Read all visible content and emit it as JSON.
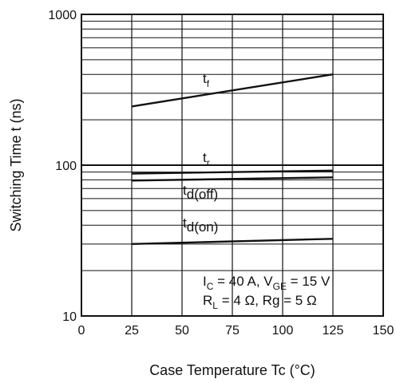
{
  "chart_data": {
    "type": "line",
    "xlabel": "Case Temperature   Tc  (°C)",
    "ylabel": "Switching Time   t  (ns)",
    "xlim": [
      0,
      150
    ],
    "ylim": [
      10,
      1000
    ],
    "y_scale": "log",
    "grid": true,
    "x_ticks": [
      "0",
      "25",
      "50",
      "75",
      "100",
      "125",
      "150"
    ],
    "y_ticks": [
      "10",
      "100",
      "1000"
    ],
    "series": [
      {
        "name": "tf",
        "label_main": "t",
        "label_sub": "f",
        "x": [
          25,
          125
        ],
        "values": [
          245,
          400
        ]
      },
      {
        "name": "tr",
        "label_main": "t",
        "label_sub": "r",
        "x": [
          25,
          125
        ],
        "values": [
          88,
          92
        ]
      },
      {
        "name": "td(off)",
        "label_main": "t",
        "label_sub": "d(off)",
        "x": [
          25,
          125
        ],
        "values": [
          79,
          83
        ]
      },
      {
        "name": "td(on)",
        "label_main": "t",
        "label_sub": "d(on)",
        "x": [
          25,
          125
        ],
        "values": [
          30,
          32.5
        ]
      }
    ],
    "conditions": {
      "line1": {
        "i": "I",
        "i_sub": "C",
        "i_val": " = 40 A, V",
        "v_sub": "GE",
        "v_val": " = 15 V"
      },
      "line2": {
        "r": "R",
        "r_sub": "L",
        "r_val": " = 4 Ω, Rg = 5 Ω"
      }
    },
    "colors": {
      "line": "#111111",
      "grid": "#111111",
      "background": "#ffffff"
    }
  }
}
